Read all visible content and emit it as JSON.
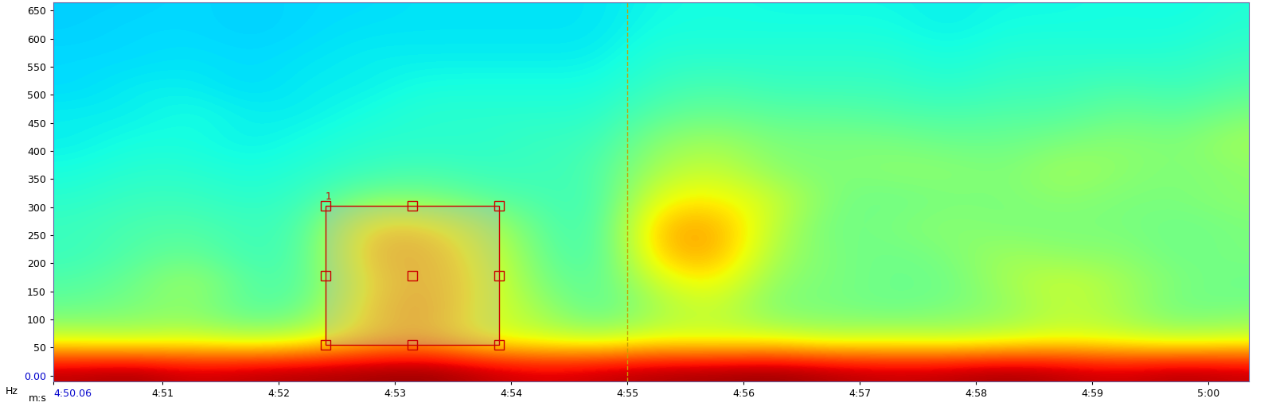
{
  "chart_data": {
    "type": "heatmap",
    "x_label": "m:s",
    "y_label": "Hz",
    "xlim": [
      290.06,
      300.35
    ],
    "ylim": [
      -10,
      665
    ],
    "xticks": [
      {
        "value": 290.06,
        "label": "4:50.06"
      },
      {
        "value": 291,
        "label": "4:51"
      },
      {
        "value": 292,
        "label": "4:52"
      },
      {
        "value": 293,
        "label": "4:53"
      },
      {
        "value": 294,
        "label": "4:54"
      },
      {
        "value": 295,
        "label": "4:55"
      },
      {
        "value": 296,
        "label": "4:56"
      },
      {
        "value": 297,
        "label": "4:57"
      },
      {
        "value": 298,
        "label": "4:58"
      },
      {
        "value": 299,
        "label": "4:59"
      },
      {
        "value": 300,
        "label": "5:00"
      }
    ],
    "yticks": [
      {
        "value": 0,
        "label": "0.00"
      },
      50,
      100,
      150,
      200,
      250,
      300,
      350,
      400,
      450,
      500,
      550,
      600,
      650
    ],
    "zlim": [
      0,
      1
    ],
    "x": [
      290.25,
      290.75,
      291.25,
      291.75,
      292.25,
      292.75,
      293.25,
      293.75,
      294.25,
      294.75,
      295.25,
      295.75,
      296.25,
      296.75,
      297.25,
      297.75,
      298.25,
      298.75,
      299.25,
      299.75,
      300.25
    ],
    "y": [
      15,
      65,
      115,
      165,
      215,
      265,
      315,
      365,
      415,
      465,
      515,
      565,
      615,
      665
    ],
    "cells": [
      [
        0.95,
        0.97,
        0.93,
        0.95,
        0.96,
        0.97,
        0.98,
        0.95,
        0.92,
        0.94,
        0.96,
        0.97,
        0.98,
        0.96,
        0.94,
        0.95,
        0.97,
        0.95,
        0.93,
        0.96,
        0.94
      ],
      [
        0.6,
        0.58,
        0.6,
        0.57,
        0.6,
        0.68,
        0.72,
        0.62,
        0.6,
        0.58,
        0.62,
        0.6,
        0.62,
        0.58,
        0.6,
        0.58,
        0.6,
        0.62,
        0.6,
        0.58,
        0.6
      ],
      [
        0.48,
        0.5,
        0.52,
        0.45,
        0.48,
        0.68,
        0.74,
        0.62,
        0.55,
        0.45,
        0.55,
        0.6,
        0.5,
        0.5,
        0.48,
        0.5,
        0.52,
        0.58,
        0.55,
        0.48,
        0.5
      ],
      [
        0.45,
        0.48,
        0.55,
        0.45,
        0.45,
        0.66,
        0.72,
        0.64,
        0.5,
        0.45,
        0.6,
        0.66,
        0.52,
        0.5,
        0.48,
        0.48,
        0.55,
        0.6,
        0.55,
        0.5,
        0.48
      ],
      [
        0.42,
        0.45,
        0.48,
        0.42,
        0.45,
        0.7,
        0.72,
        0.62,
        0.48,
        0.42,
        0.7,
        0.74,
        0.55,
        0.5,
        0.48,
        0.5,
        0.55,
        0.52,
        0.52,
        0.48,
        0.5
      ],
      [
        0.42,
        0.44,
        0.45,
        0.42,
        0.44,
        0.68,
        0.68,
        0.58,
        0.46,
        0.42,
        0.72,
        0.74,
        0.58,
        0.48,
        0.5,
        0.52,
        0.5,
        0.5,
        0.5,
        0.48,
        0.5
      ],
      [
        0.4,
        0.42,
        0.42,
        0.4,
        0.42,
        0.5,
        0.5,
        0.46,
        0.44,
        0.42,
        0.64,
        0.66,
        0.6,
        0.5,
        0.48,
        0.5,
        0.5,
        0.52,
        0.5,
        0.5,
        0.52
      ],
      [
        0.38,
        0.4,
        0.4,
        0.38,
        0.4,
        0.42,
        0.44,
        0.42,
        0.42,
        0.44,
        0.56,
        0.6,
        0.52,
        0.5,
        0.52,
        0.52,
        0.5,
        0.55,
        0.52,
        0.5,
        0.52
      ],
      [
        0.36,
        0.38,
        0.38,
        0.36,
        0.38,
        0.4,
        0.4,
        0.4,
        0.42,
        0.42,
        0.52,
        0.55,
        0.5,
        0.5,
        0.5,
        0.48,
        0.48,
        0.5,
        0.52,
        0.5,
        0.55
      ],
      [
        0.36,
        0.36,
        0.38,
        0.36,
        0.36,
        0.38,
        0.4,
        0.4,
        0.4,
        0.4,
        0.46,
        0.48,
        0.46,
        0.46,
        0.45,
        0.44,
        0.45,
        0.45,
        0.48,
        0.46,
        0.5
      ],
      [
        0.34,
        0.36,
        0.36,
        0.34,
        0.36,
        0.36,
        0.38,
        0.38,
        0.38,
        0.38,
        0.42,
        0.44,
        0.42,
        0.42,
        0.42,
        0.4,
        0.42,
        0.42,
        0.44,
        0.42,
        0.45
      ],
      [
        0.34,
        0.34,
        0.35,
        0.34,
        0.35,
        0.36,
        0.36,
        0.36,
        0.36,
        0.36,
        0.4,
        0.4,
        0.4,
        0.4,
        0.4,
        0.38,
        0.4,
        0.4,
        0.4,
        0.4,
        0.42
      ],
      [
        0.33,
        0.34,
        0.34,
        0.33,
        0.34,
        0.35,
        0.35,
        0.35,
        0.35,
        0.35,
        0.38,
        0.38,
        0.38,
        0.38,
        0.38,
        0.36,
        0.38,
        0.38,
        0.38,
        0.38,
        0.4
      ],
      [
        0.33,
        0.33,
        0.34,
        0.33,
        0.34,
        0.34,
        0.35,
        0.35,
        0.35,
        0.35,
        0.37,
        0.38,
        0.37,
        0.37,
        0.37,
        0.36,
        0.37,
        0.37,
        0.38,
        0.37,
        0.39
      ]
    ],
    "cursor": 295.0,
    "selection": {
      "label": "1",
      "x": [
        292.4,
        293.9
      ],
      "y": [
        55,
        302
      ]
    }
  }
}
